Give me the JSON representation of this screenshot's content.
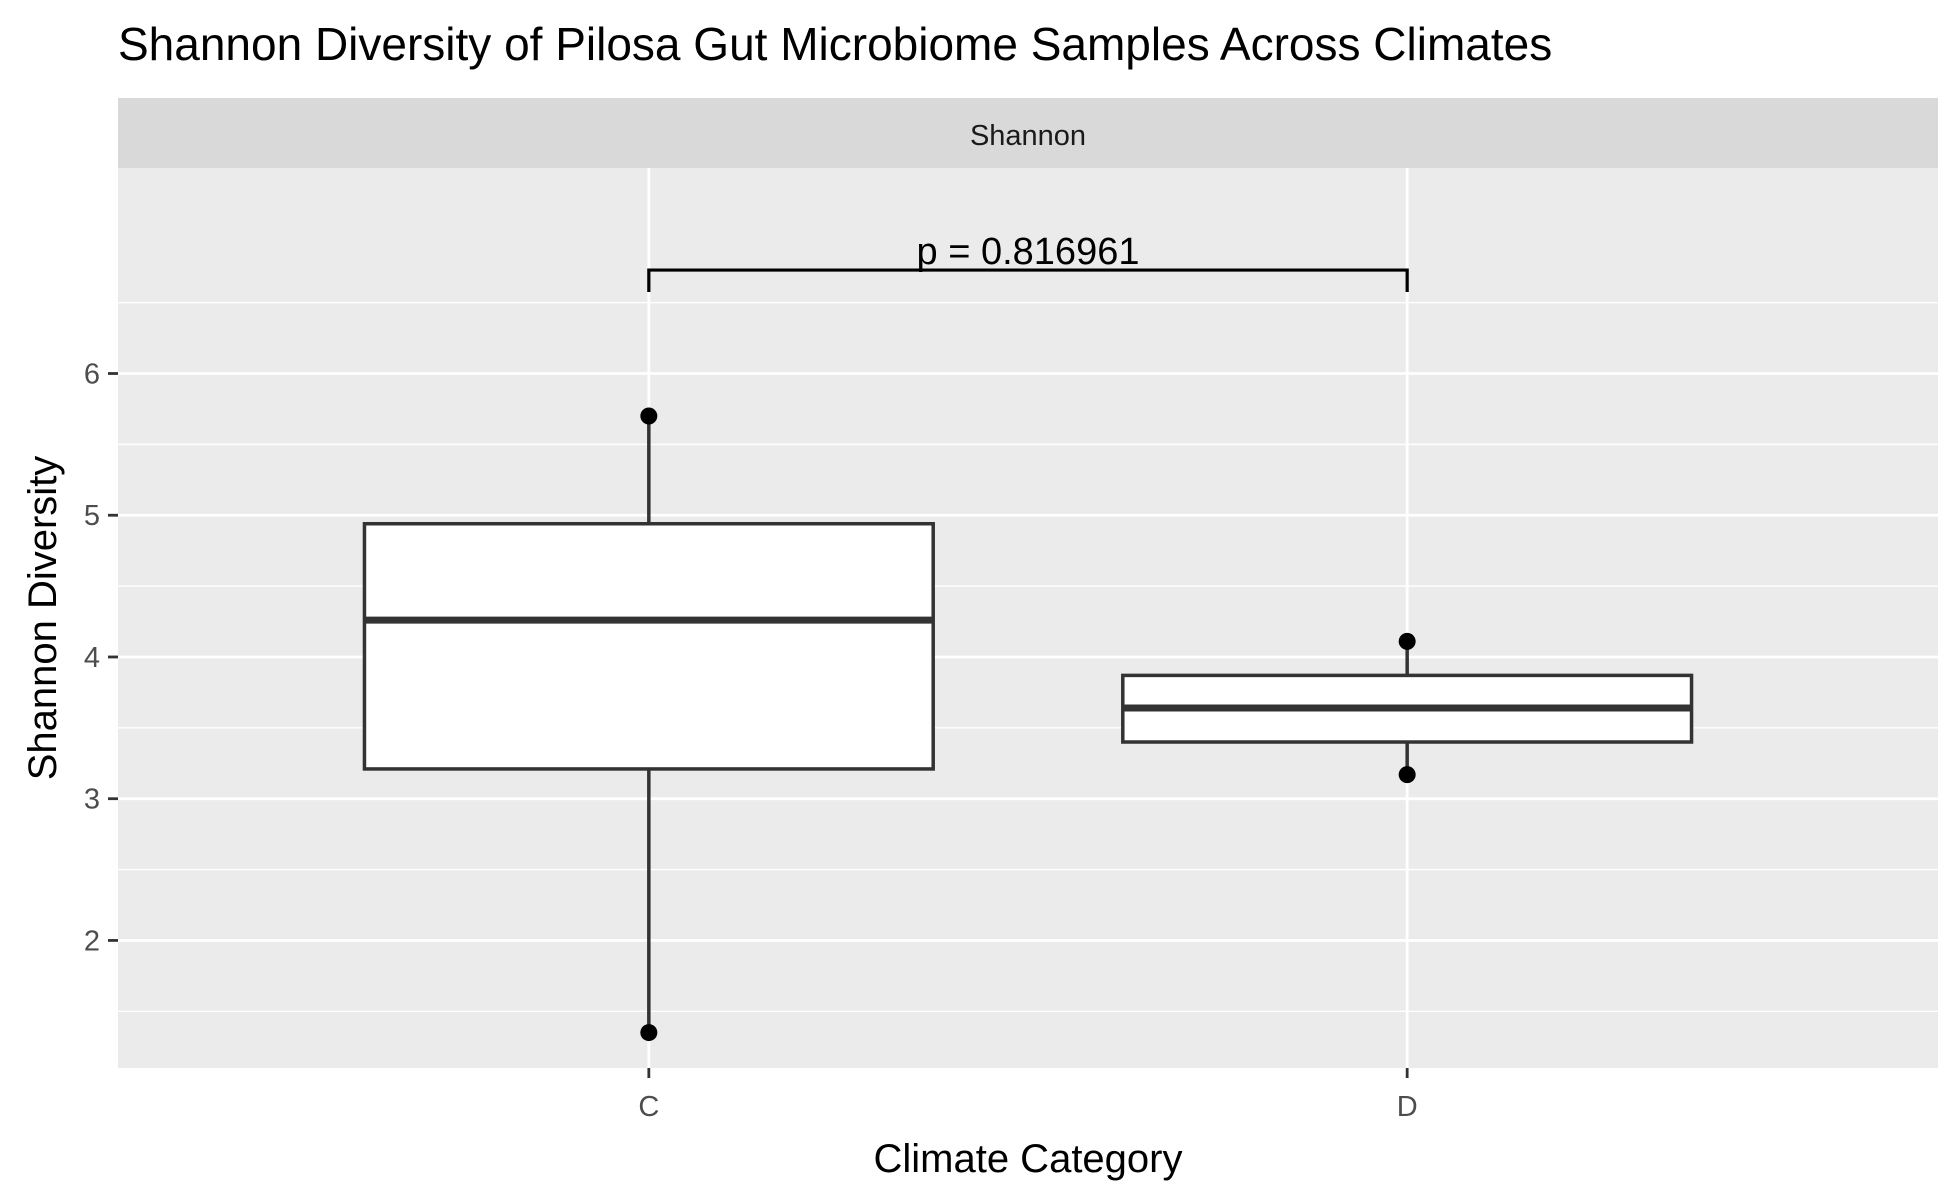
{
  "chart_data": {
    "type": "boxplot",
    "title": "Shannon Diversity of Pilosa Gut Microbiome Samples Across Climates",
    "facet_label": "Shannon",
    "xlabel": "Climate Category",
    "ylabel": "Shannon Diversity",
    "ylim": [
      1.1,
      7.45
    ],
    "y_ticks": [
      2,
      3,
      4,
      5,
      6
    ],
    "y_minor_ticks": [
      1.5,
      2.5,
      3.5,
      4.5,
      5.5,
      6.5
    ],
    "grid": true,
    "categories": [
      "C",
      "D"
    ],
    "boxes": [
      {
        "category": "C",
        "min": 1.35,
        "q1": 3.21,
        "median": 4.26,
        "q3": 4.94,
        "max": 5.7,
        "points": [
          1.35,
          5.7
        ]
      },
      {
        "category": "D",
        "min": 3.17,
        "q1": 3.4,
        "median": 3.64,
        "q3": 3.87,
        "max": 4.11,
        "points": [
          3.17,
          4.11
        ]
      }
    ],
    "significance": {
      "from": "C",
      "to": "D",
      "label": "p = 0.816961",
      "y": 6.73
    },
    "colors": {
      "panel_bg": "#ebebeb",
      "strip_bg": "#d9d9d9",
      "grid": "#ffffff",
      "box_fill": "#ffffff",
      "box_stroke": "#333333",
      "point": "#000000"
    }
  }
}
